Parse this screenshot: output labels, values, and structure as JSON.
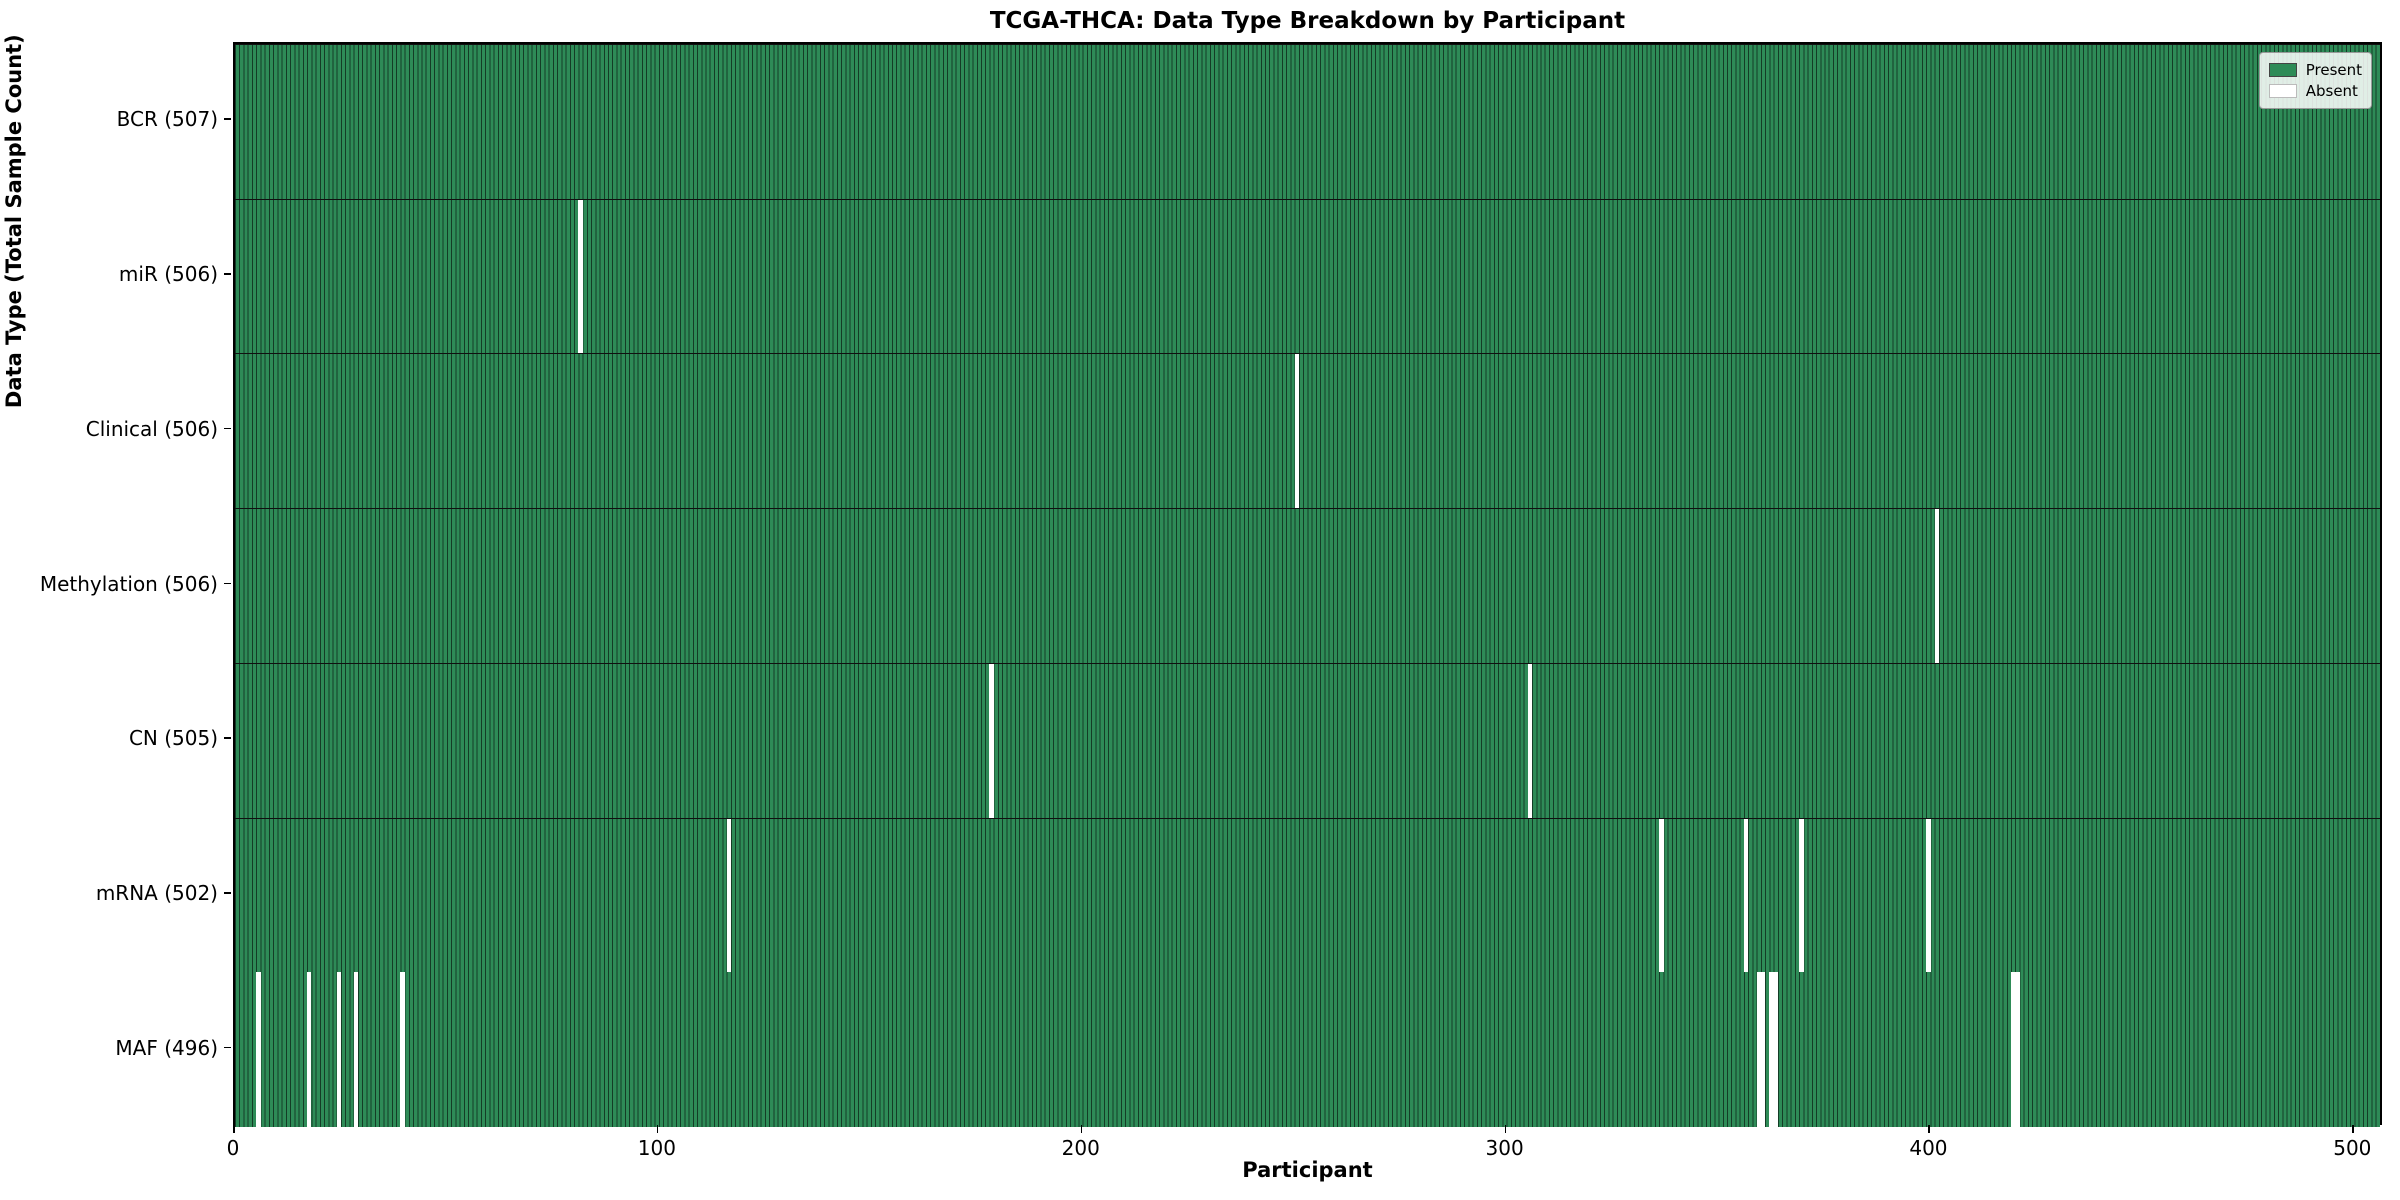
{
  "title": "TCGA-THCA: Data Type Breakdown by Participant",
  "chart_data": {
    "type": "heatmap",
    "title": "TCGA-THCA: Data Type Breakdown by Participant",
    "xlabel": "Participant",
    "ylabel": "Data Type (Total Sample Count)",
    "xlim": [
      0,
      507
    ],
    "x_ticks": [
      0,
      100,
      200,
      300,
      400,
      500
    ],
    "total_participants": 507,
    "grid": false,
    "legend": {
      "position": "upper right",
      "present_label": "Present",
      "absent_label": "Absent"
    },
    "colors": {
      "present": "#2e8b57",
      "absent": "#ffffff",
      "bar_edge": "#12301f",
      "axis": "#000000"
    },
    "rows": [
      {
        "label": "BCR (507)",
        "data_type": "BCR",
        "present_count": 507,
        "absent_participants": []
      },
      {
        "label": "miR (506)",
        "data_type": "miR",
        "present_count": 506,
        "absent_participants": [
          81
        ]
      },
      {
        "label": "Clinical (506)",
        "data_type": "Clinical",
        "present_count": 506,
        "absent_participants": [
          250
        ]
      },
      {
        "label": "Methylation (506)",
        "data_type": "Methylation",
        "present_count": 506,
        "absent_participants": [
          401
        ]
      },
      {
        "label": "CN (505)",
        "data_type": "CN",
        "present_count": 505,
        "absent_participants": [
          178,
          305
        ]
      },
      {
        "label": "mRNA (502)",
        "data_type": "mRNA",
        "present_count": 502,
        "absent_participants": [
          116,
          336,
          356,
          369,
          399
        ]
      },
      {
        "label": "MAF (496)",
        "data_type": "MAF",
        "present_count": 496,
        "absent_participants": [
          5,
          17,
          24,
          28,
          39,
          359,
          360,
          362,
          363,
          419,
          420
        ]
      }
    ]
  }
}
